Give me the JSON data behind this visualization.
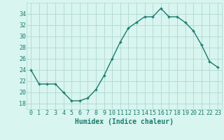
{
  "x": [
    0,
    1,
    2,
    3,
    4,
    5,
    6,
    7,
    8,
    9,
    10,
    11,
    12,
    13,
    14,
    15,
    16,
    17,
    18,
    19,
    20,
    21,
    22,
    23
  ],
  "y": [
    24,
    21.5,
    21.5,
    21.5,
    20,
    18.5,
    18.5,
    19,
    20.5,
    23,
    26,
    29,
    31.5,
    32.5,
    33.5,
    33.5,
    35,
    33.5,
    33.5,
    32.5,
    31,
    28.5,
    25.5,
    24.5
  ],
  "line_color": "#1a7a6e",
  "marker": "+",
  "marker_size": 3,
  "marker_linewidth": 1.0,
  "line_width": 1.0,
  "bg_color": "#d8f5f0",
  "grid_color": "#b0d8d0",
  "xlabel": "Humidex (Indice chaleur)",
  "ylim": [
    17,
    36
  ],
  "xlim": [
    -0.5,
    23.5
  ],
  "yticks": [
    18,
    20,
    22,
    24,
    26,
    28,
    30,
    32,
    34
  ],
  "xticks": [
    0,
    1,
    2,
    3,
    4,
    5,
    6,
    7,
    8,
    9,
    10,
    11,
    12,
    13,
    14,
    15,
    16,
    17,
    18,
    19,
    20,
    21,
    22,
    23
  ],
  "label_fontsize": 7,
  "tick_fontsize": 6
}
